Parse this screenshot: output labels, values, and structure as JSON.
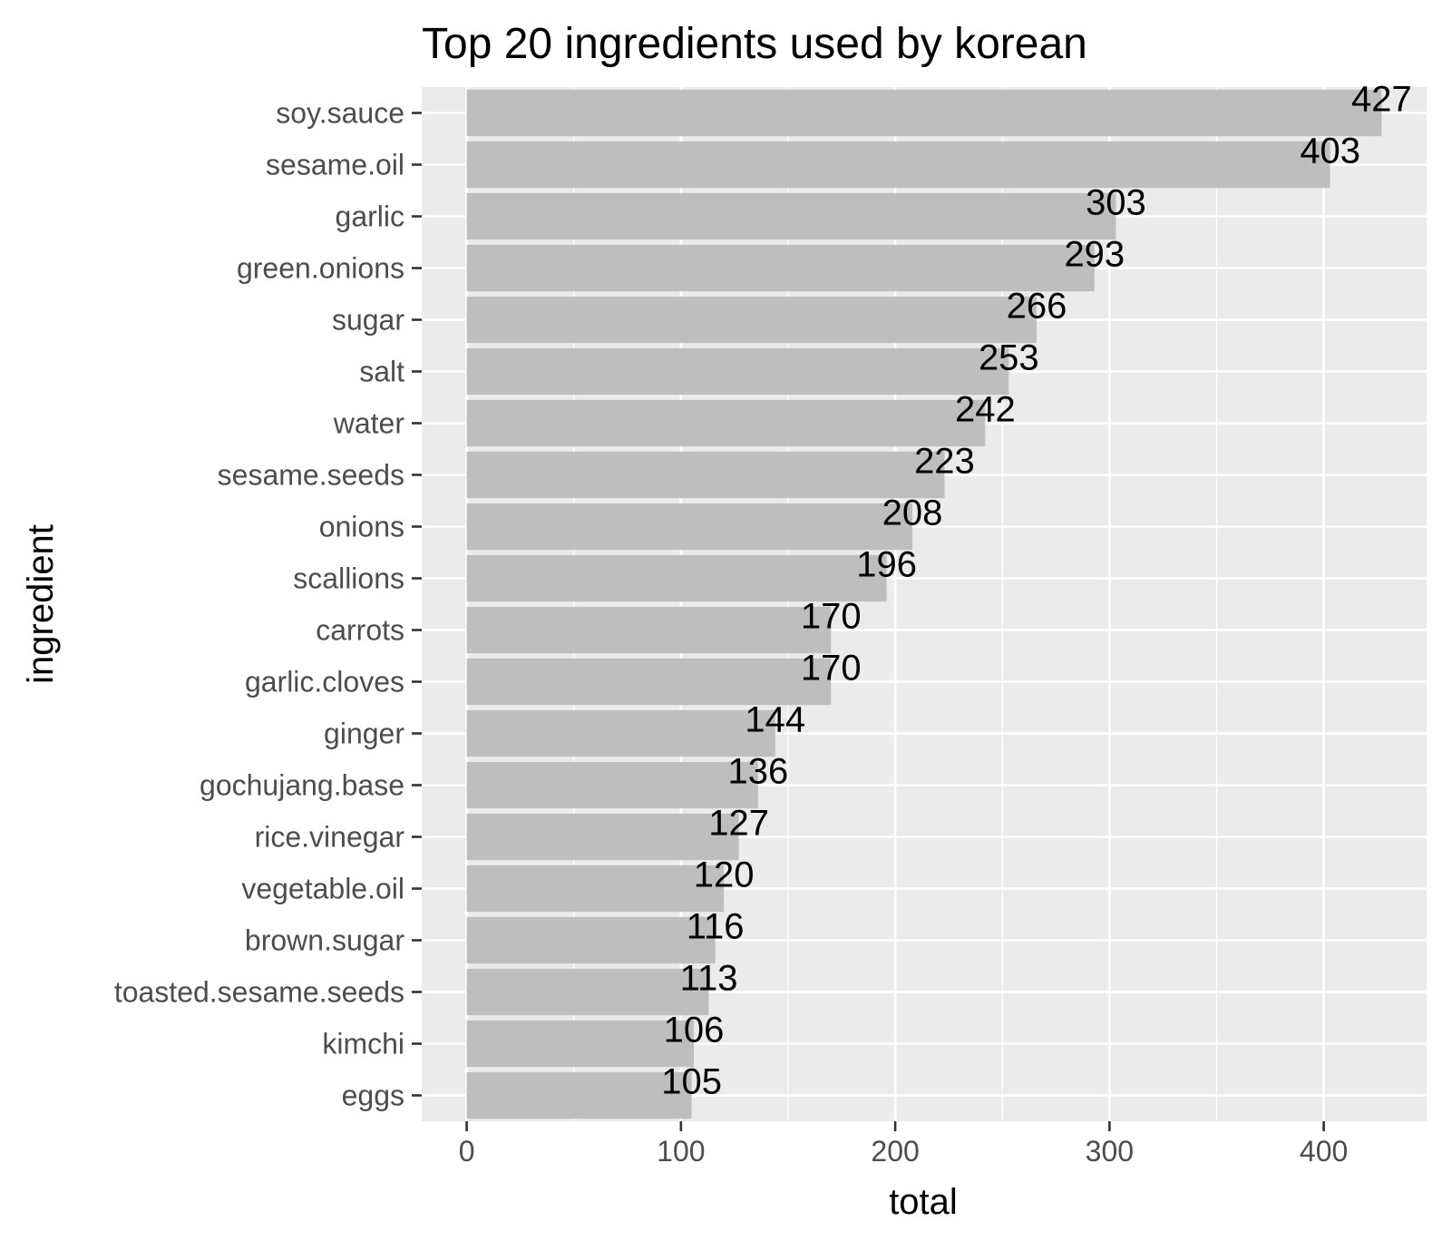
{
  "chart_data": {
    "type": "bar",
    "orientation": "horizontal",
    "title": "Top 20 ingredients used by korean",
    "xlabel": "total",
    "ylabel": "ingredient",
    "categories": [
      "soy.sauce",
      "sesame.oil",
      "garlic",
      "green.onions",
      "sugar",
      "salt",
      "water",
      "sesame.seeds",
      "onions",
      "scallions",
      "carrots",
      "garlic.cloves",
      "ginger",
      "gochujang.base",
      "rice.vinegar",
      "vegetable.oil",
      "brown.sugar",
      "toasted.sesame.seeds",
      "kimchi",
      "eggs"
    ],
    "values": [
      427,
      403,
      303,
      293,
      266,
      253,
      242,
      223,
      208,
      196,
      170,
      170,
      144,
      136,
      127,
      120,
      116,
      113,
      106,
      105
    ],
    "data_labels": [
      "427",
      "403",
      "303",
      "293",
      "266",
      "253",
      "242",
      "223",
      "208",
      "196",
      "170",
      "170",
      "144",
      "136",
      "127",
      "120",
      "116",
      "113",
      "106",
      "105"
    ],
    "xlim": [
      -21,
      448
    ],
    "x_ticks": [
      0,
      100,
      200,
      300,
      400
    ],
    "x_tick_labels": [
      "0",
      "100",
      "200",
      "300",
      "400"
    ],
    "grid": true,
    "legend": "none",
    "colors": {
      "bar": "#bebebe",
      "panel": "#ebebeb",
      "grid": "#ffffff",
      "text": "#000000",
      "tick_text": "#4d4d4d",
      "tick_mark": "#333333"
    }
  }
}
